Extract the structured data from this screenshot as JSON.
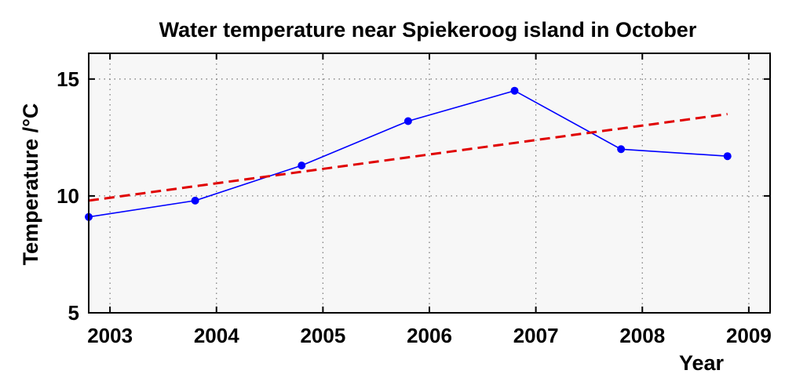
{
  "chart_data": {
    "type": "line",
    "title": "Water temperature near Spiekeroog island in October",
    "xlabel": "Year",
    "ylabel": "Temperature /°C",
    "xlim": [
      2002.8,
      2009.2
    ],
    "ylim": [
      5,
      16.1
    ],
    "xticks": [
      2003,
      2004,
      2005,
      2006,
      2007,
      2008,
      2009
    ],
    "xtick_labels": [
      "2003",
      "2004",
      "2005",
      "2006",
      "2007",
      "2008",
      "2009"
    ],
    "yticks": [
      5,
      10,
      15
    ],
    "ytick_labels": [
      "5",
      "10",
      "15"
    ],
    "grid": true,
    "series": [
      {
        "style": "line-with-markers",
        "color": "#0000ff",
        "x": [
          2002.8,
          2003.8,
          2004.8,
          2005.8,
          2006.8,
          2007.8,
          2008.8
        ],
        "y": [
          9.1,
          9.8,
          11.3,
          13.2,
          14.5,
          12.0,
          11.7
        ]
      },
      {
        "style": "dashed-trend",
        "color": "#e00000",
        "x": [
          2002.8,
          2008.8
        ],
        "y": [
          9.8,
          13.5
        ]
      }
    ]
  }
}
